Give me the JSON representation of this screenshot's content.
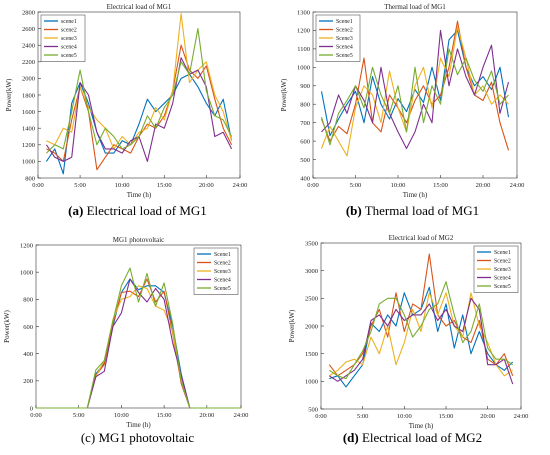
{
  "colors": [
    "#0072BD",
    "#D95319",
    "#EDB120",
    "#7E2F8E",
    "#77AC30"
  ],
  "panels": [
    {
      "caption_letter": "(a)",
      "caption_text": " Electrical load of MG1",
      "chart": {
        "type": "line",
        "title": "Electrical load of MG1",
        "xlabel": "Time (h)",
        "ylabel": "Power(kW)",
        "xlim": [
          0,
          24
        ],
        "ylim": [
          800,
          2800
        ],
        "xticks": [
          0,
          5,
          10,
          15,
          20,
          24
        ],
        "xticklabels": [
          "0:00",
          "5:00",
          "10:00",
          "15:00",
          "20:00",
          "24:00"
        ],
        "yticks": [
          800,
          1000,
          1200,
          1400,
          1600,
          1800,
          2000,
          2200,
          2400,
          2600,
          2800
        ],
        "yticklabels": [
          "800",
          "1000",
          "1200",
          "1400",
          "1600",
          "1800",
          "2000",
          "2200",
          "2400",
          "2600",
          "2800"
        ],
        "legend_position": "top-left",
        "x": [
          1,
          2,
          3,
          4,
          5,
          6,
          7,
          8,
          9,
          10,
          11,
          12,
          13,
          14,
          15,
          16,
          17,
          18,
          19,
          20,
          21,
          22,
          23
        ],
        "series": [
          {
            "name": "scene1",
            "values": [
              1000,
              1150,
              850,
              1700,
              1950,
              1700,
              1350,
              1100,
              1100,
              1250,
              1200,
              1450,
              1750,
              1600,
              1700,
              1800,
              2000,
              2050,
              1900,
              1700,
              1550,
              1750,
              1250
            ]
          },
          {
            "name": "scene2",
            "values": [
              1150,
              1100,
              1000,
              1500,
              1900,
              1600,
              900,
              1050,
              1200,
              1150,
              1100,
              1300,
              1450,
              1400,
              1550,
              1850,
              2400,
              2100,
              2000,
              2150,
              1750,
              1400,
              1200
            ]
          },
          {
            "name": "scene3",
            "values": [
              1250,
              1200,
              1400,
              1350,
              1900,
              1650,
              1500,
              1400,
              1150,
              1300,
              1200,
              1350,
              1400,
              1650,
              1500,
              1850,
              2780,
              1950,
              2100,
              2200,
              1800,
              1600,
              1250
            ]
          },
          {
            "name": "scene4",
            "values": [
              1200,
              1050,
              1000,
              1050,
              1950,
              1800,
              1350,
              1150,
              1150,
              1100,
              1250,
              1300,
              1000,
              1450,
              1400,
              1700,
              2250,
              2050,
              2100,
              1900,
              1300,
              1350,
              1150
            ]
          },
          {
            "name": "scene5",
            "values": [
              1100,
              1200,
              1150,
              1600,
              2100,
              1600,
              1200,
              1400,
              1300,
              1150,
              1200,
              1300,
              1550,
              1400,
              1650,
              1800,
              2200,
              2050,
              2600,
              1850,
              1550,
              1500,
              1300
            ]
          }
        ]
      }
    },
    {
      "caption_letter": "(b)",
      "caption_text": " Thermal load of MG1",
      "chart": {
        "type": "line",
        "title": "Thermal load of MG1",
        "xlabel": "Time (h)",
        "ylabel": "Power(kW)",
        "xlim": [
          0,
          24
        ],
        "ylim": [
          400,
          1300
        ],
        "xticks": [
          0,
          5,
          10,
          15,
          20,
          24
        ],
        "xticklabels": [
          "0:00",
          "5:00",
          "10:00",
          "15:00",
          "20:00",
          "24:00"
        ],
        "yticks": [
          400,
          500,
          600,
          700,
          800,
          900,
          1000,
          1100,
          1200,
          1300
        ],
        "yticklabels": [
          "400",
          "500",
          "600",
          "700",
          "800",
          "900",
          "1000",
          "1100",
          "1200",
          "1300"
        ],
        "legend_position": "top-left",
        "x": [
          1,
          2,
          3,
          4,
          5,
          6,
          7,
          8,
          9,
          10,
          11,
          12,
          13,
          14,
          15,
          16,
          17,
          18,
          19,
          20,
          21,
          22,
          23
        ],
        "series": [
          {
            "name": "Scene1",
            "values": [
              870,
              630,
              720,
              800,
              870,
              700,
              950,
              800,
              720,
              830,
              760,
              880,
              810,
              1000,
              820,
              1150,
              1200,
              1000,
              900,
              950,
              880,
              1000,
              730
            ]
          },
          {
            "name": "Scene2",
            "values": [
              720,
              600,
              680,
              640,
              800,
              1050,
              700,
              650,
              850,
              780,
              700,
              820,
              900,
              800,
              850,
              1000,
              1250,
              1000,
              850,
              820,
              920,
              700,
              550
            ]
          },
          {
            "name": "Scene3",
            "values": [
              560,
              680,
              600,
              520,
              780,
              900,
              850,
              700,
              980,
              780,
              650,
              900,
              1000,
              780,
              1050,
              950,
              1220,
              1050,
              850,
              900,
              800,
              850,
              800
            ]
          },
          {
            "name": "Scene4",
            "values": [
              650,
              700,
              850,
              750,
              900,
              820,
              700,
              1000,
              750,
              650,
              560,
              650,
              800,
              700,
              1200,
              900,
              1100,
              950,
              850,
              1000,
              1120,
              750,
              920
            ]
          },
          {
            "name": "Scene5",
            "values": [
              730,
              580,
              750,
              820,
              900,
              780,
              1000,
              850,
              750,
              900,
              650,
              1000,
              700,
              900,
              800,
              1100,
              960,
              1050,
              930,
              870,
              980,
              800,
              850
            ]
          }
        ]
      }
    },
    {
      "caption_letter": "(c)",
      "caption_text": "MG1 photovoltaic",
      "chart": {
        "type": "line",
        "title": "MG1 photovoltaic",
        "xlabel": "Time (h)",
        "ylabel": "Power(kW)",
        "xlim": [
          0,
          24
        ],
        "ylim": [
          0,
          1200
        ],
        "xticks": [
          0,
          5,
          10,
          15,
          20,
          24
        ],
        "xticklabels": [
          "0:00",
          "5:00",
          "10:00",
          "15:00",
          "20:00",
          "24:00"
        ],
        "yticks": [
          0,
          200,
          400,
          600,
          800,
          1000,
          1200
        ],
        "yticklabels": [
          "0",
          "200",
          "400",
          "600",
          "800",
          "1000",
          "1200"
        ],
        "legend_position": "top-right",
        "x": [
          0,
          1,
          2,
          3,
          4,
          5,
          6,
          7,
          8,
          9,
          10,
          11,
          12,
          13,
          14,
          15,
          16,
          17,
          18,
          19,
          20,
          21,
          22,
          23,
          24
        ],
        "series": [
          {
            "name": "Scene1",
            "values": [
              0,
              0,
              0,
              0,
              0,
              0,
              0,
              250,
              330,
              600,
              850,
              950,
              870,
              900,
              900,
              850,
              600,
              250,
              0,
              0,
              0,
              0,
              0,
              0,
              0
            ]
          },
          {
            "name": "Scene2",
            "values": [
              0,
              0,
              0,
              0,
              0,
              0,
              0,
              240,
              320,
              620,
              850,
              860,
              820,
              950,
              780,
              860,
              550,
              180,
              0,
              0,
              0,
              0,
              0,
              0,
              0
            ]
          },
          {
            "name": "Scene3",
            "values": [
              0,
              0,
              0,
              0,
              0,
              0,
              0,
              230,
              350,
              650,
              800,
              820,
              900,
              880,
              750,
              720,
              560,
              200,
              0,
              0,
              0,
              0,
              0,
              0,
              0
            ]
          },
          {
            "name": "Scene4",
            "values": [
              0,
              0,
              0,
              0,
              0,
              0,
              0,
              230,
              270,
              600,
              700,
              950,
              850,
              780,
              880,
              800,
              480,
              240,
              0,
              0,
              0,
              0,
              0,
              0,
              0
            ]
          },
          {
            "name": "Scene5",
            "values": [
              0,
              0,
              0,
              0,
              0,
              0,
              0,
              280,
              350,
              640,
              900,
              1030,
              780,
              990,
              750,
              920,
              620,
              200,
              0,
              0,
              0,
              0,
              0,
              0,
              0
            ]
          }
        ]
      }
    },
    {
      "caption_letter": "(d)",
      "caption_text": " Electrical load of MG2",
      "chart": {
        "type": "line",
        "title": "Electrical load of MG2",
        "xlabel": "Time (h)",
        "ylabel": "Power(kW)",
        "xlim": [
          0,
          24
        ],
        "ylim": [
          500,
          3500
        ],
        "xticks": [
          0,
          5,
          10,
          15,
          20,
          24
        ],
        "xticklabels": [
          "0:00",
          "5:00",
          "10:00",
          "15:00",
          "20:00",
          "24:00"
        ],
        "yticks": [
          500,
          1000,
          1500,
          2000,
          2500,
          3000,
          3500
        ],
        "yticklabels": [
          "500",
          "1000",
          "1500",
          "2000",
          "2500",
          "3000",
          "3500"
        ],
        "legend_position": "top-right",
        "x": [
          1,
          2,
          3,
          4,
          5,
          6,
          7,
          8,
          9,
          10,
          11,
          12,
          13,
          14,
          15,
          16,
          17,
          18,
          19,
          20,
          21,
          22,
          23
        ],
        "series": [
          {
            "name": "Scene1",
            "values": [
              1050,
              1100,
              900,
              1100,
              1300,
              2050,
              1900,
              2200,
              2000,
              2600,
              2200,
              2300,
              2700,
              1900,
              2400,
              1600,
              2200,
              1500,
              1900,
              1500,
              1300,
              1200,
              1350
            ]
          },
          {
            "name": "Scene2",
            "values": [
              1300,
              1100,
              1200,
              1300,
              1500,
              2000,
              2300,
              1800,
              2600,
              1900,
              2400,
              2300,
              3300,
              2200,
              2000,
              2100,
              1800,
              1700,
              2100,
              1400,
              1300,
              1500,
              1100
            ]
          },
          {
            "name": "Scene3",
            "values": [
              1100,
              1200,
              1350,
              1400,
              1300,
              1800,
              1500,
              2000,
              1300,
              1700,
              2300,
              1900,
              2600,
              2200,
              2600,
              2000,
              1800,
              2600,
              2000,
              1700,
              1300,
              1100,
              1200
            ]
          },
          {
            "name": "Scene4",
            "values": [
              1100,
              1000,
              1100,
              1200,
              1400,
              2100,
              2200,
              2000,
              2300,
              2100,
              2200,
              2200,
              2400,
              2100,
              2300,
              2000,
              1900,
              2500,
              2300,
              1300,
              1300,
              1400,
              950
            ]
          },
          {
            "name": "Scene5",
            "values": [
              1200,
              1100,
              1050,
              1300,
              1550,
              1900,
              2400,
              2500,
              2500,
              2200,
              1800,
              2000,
              2300,
              2400,
              2800,
              2200,
              1700,
              1900,
              2400,
              1600,
              1400,
              1400,
              1300
            ]
          }
        ]
      }
    }
  ]
}
